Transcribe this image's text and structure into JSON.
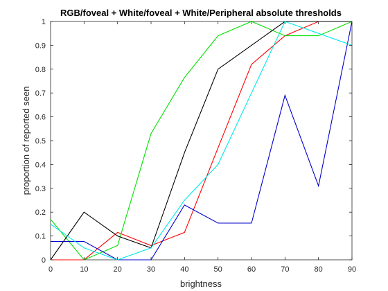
{
  "chart_data": {
    "type": "line",
    "title": "RGB/foveal + White/foveal + White/Peripheral absolute thresholds",
    "xlabel": "brightness",
    "ylabel": "proportion of reported seen",
    "xlim": [
      0,
      90
    ],
    "ylim": [
      0,
      1
    ],
    "x_ticks": [
      "0",
      "10",
      "20",
      "30",
      "40",
      "50",
      "60",
      "70",
      "80",
      "90"
    ],
    "y_ticks": [
      "0",
      "0.1",
      "0.2",
      "0.3",
      "0.4",
      "0.5",
      "0.6",
      "0.7",
      "0.8",
      "0.9",
      "1"
    ],
    "grid": false,
    "legend": "none",
    "x": [
      0,
      10,
      20,
      30,
      40,
      50,
      60,
      70,
      80,
      90
    ],
    "series": [
      {
        "color": "#ff0000",
        "values": [
          0,
          0,
          0.115,
          0.06,
          0.115,
          0.47,
          0.82,
          0.94,
          1.0,
          1.0
        ]
      },
      {
        "color": "#00e000",
        "values": [
          0.17,
          0,
          0.06,
          0.53,
          0.765,
          0.94,
          1.0,
          0.94,
          0.94,
          1.0
        ]
      },
      {
        "color": "#0000cc",
        "values": [
          0.077,
          0.077,
          0,
          0,
          0.23,
          0.154,
          0.154,
          0.69,
          0.31,
          1.0
        ]
      },
      {
        "color": "#000000",
        "values": [
          0,
          0.2,
          0.1,
          0.05,
          0.45,
          0.8,
          0.9,
          1.0,
          1.0,
          1.0
        ]
      },
      {
        "color": "#00e8e8",
        "values": [
          0.15,
          0.05,
          0,
          0.05,
          0.25,
          0.4,
          0.7,
          1.0,
          0.95,
          0.9
        ]
      }
    ]
  }
}
